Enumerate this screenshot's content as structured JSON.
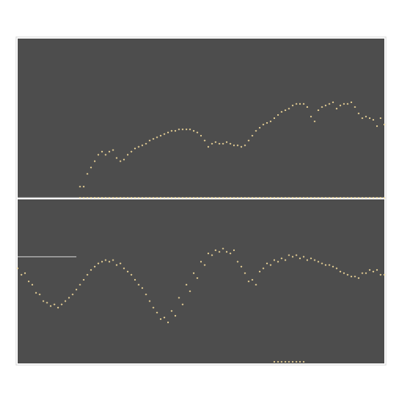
{
  "chart_data": [
    {
      "type": "scatter",
      "panel": "top",
      "background_color": "#4d4d4d",
      "point_color": "#f5dc9c",
      "grid": false,
      "axes_visible": false,
      "reference_line": {
        "y": 0,
        "color": "#cfcfcf"
      },
      "xlim": [
        0,
        100
      ],
      "ylim": [
        0,
        100
      ],
      "series": [
        {
          "x": [
            17,
            18,
            19,
            20,
            21,
            22,
            23,
            24,
            25,
            26,
            27,
            28,
            29,
            30,
            31,
            32,
            33,
            34,
            35,
            36,
            37,
            38,
            39,
            40,
            41,
            42,
            43,
            44,
            45,
            46,
            47,
            48,
            49,
            50,
            51,
            52,
            53,
            54,
            55,
            56,
            57,
            58,
            59,
            60,
            61,
            62,
            63,
            64,
            65,
            66,
            67,
            68,
            69,
            70,
            71,
            72,
            73,
            74,
            75,
            76,
            77,
            78,
            79,
            80,
            81,
            82,
            83,
            84,
            85,
            86,
            87,
            88,
            89,
            90,
            91,
            92,
            93,
            94,
            95,
            96,
            97,
            98,
            99,
            100
          ],
          "y": [
            7,
            7,
            15,
            19,
            23,
            27,
            29,
            27,
            29,
            30,
            25,
            23,
            24,
            27,
            29,
            31,
            32,
            33,
            34,
            36,
            37,
            38,
            39,
            40,
            41,
            42,
            42,
            43,
            43,
            43,
            43,
            42,
            41,
            39,
            36,
            32,
            34,
            35,
            34,
            34,
            35,
            34,
            33,
            33,
            32,
            33,
            36,
            39,
            42,
            44,
            46,
            47,
            48,
            50,
            52,
            54,
            55,
            56,
            58,
            59,
            59,
            59,
            57,
            51,
            48,
            55,
            57,
            58,
            59,
            60,
            56,
            58,
            59,
            59,
            60,
            57,
            53,
            50,
            51,
            50,
            49,
            45,
            50,
            46
          ]
        },
        {
          "x": [
            17,
            18,
            19,
            20,
            21,
            22,
            23,
            24,
            25,
            26,
            27,
            28,
            29,
            30,
            31,
            32,
            33,
            34,
            35,
            36,
            37,
            38,
            39,
            40,
            41,
            42,
            43,
            44,
            45,
            46,
            47,
            48,
            49,
            50,
            51,
            52,
            53,
            54,
            55,
            56,
            57,
            58,
            59,
            60,
            61,
            62,
            63,
            64,
            65,
            66,
            67,
            68,
            69,
            70,
            71,
            72,
            73,
            74,
            75,
            76,
            77,
            78,
            79,
            80,
            81,
            82,
            83,
            84,
            85,
            86,
            87,
            88,
            89,
            90,
            91,
            92,
            93,
            94,
            95,
            96,
            97,
            98,
            99,
            100
          ],
          "y": [
            0,
            0,
            0,
            0,
            0,
            0,
            0,
            0,
            0,
            0,
            0,
            0,
            0,
            0,
            0,
            0,
            0,
            0,
            0,
            0,
            0,
            0,
            0,
            0,
            0,
            0,
            0,
            0,
            0,
            0,
            0,
            0,
            0,
            0,
            0,
            0,
            0,
            0,
            0,
            0,
            0,
            0,
            0,
            0,
            0,
            0,
            0,
            0,
            0,
            0,
            0,
            0,
            0,
            0,
            0,
            0,
            0,
            0,
            0,
            0,
            0,
            0,
            0,
            0,
            0,
            0,
            0,
            0,
            0,
            0,
            0,
            0,
            0,
            0,
            0,
            0,
            0,
            0,
            0,
            0,
            0,
            0,
            0,
            0
          ]
        }
      ]
    },
    {
      "type": "scatter",
      "panel": "bottom",
      "background_color": "#4d4d4d",
      "point_color": "#f5dc9c",
      "grid": false,
      "axes_visible": false,
      "reference_line": {
        "y": 65,
        "x_range": [
          0,
          16
        ],
        "color": "#cfcfcf"
      },
      "xlim": [
        0,
        100
      ],
      "ylim": [
        0,
        100
      ],
      "series": [
        {
          "x": [
            0,
            2,
            4,
            6,
            8,
            10,
            12,
            14,
            16,
            18,
            20,
            22,
            24,
            26,
            28,
            30,
            32,
            34,
            36,
            38,
            40,
            42,
            44,
            46,
            48,
            50,
            52,
            54,
            56,
            58,
            60,
            62,
            64,
            66,
            68,
            70,
            72,
            74,
            76,
            78,
            80,
            82,
            84,
            86,
            88,
            90,
            92,
            94,
            96,
            98,
            100
          ],
          "y": [
            58,
            55,
            48,
            42,
            37,
            36,
            36,
            40,
            45,
            51,
            57,
            61,
            63,
            63,
            61,
            56,
            51,
            46,
            38,
            31,
            28,
            32,
            40,
            48,
            55,
            62,
            67,
            69,
            70,
            67,
            62,
            55,
            51,
            56,
            61,
            63,
            64,
            66,
            66,
            65,
            64,
            62,
            60,
            59,
            56,
            54,
            53,
            55,
            57,
            57,
            54
          ]
        },
        {
          "x": [
            1,
            3,
            5,
            7,
            9,
            11,
            13,
            15,
            17,
            19,
            21,
            23,
            25,
            27,
            29,
            31,
            33,
            35,
            37,
            39,
            41,
            43,
            45,
            47,
            49,
            51,
            53,
            55,
            57,
            59,
            61,
            63,
            65,
            67,
            69,
            71,
            73,
            75,
            77,
            79,
            81,
            83,
            85,
            87,
            89,
            91,
            93,
            95,
            97,
            99
          ],
          "y": [
            54,
            50,
            43,
            38,
            35,
            34,
            38,
            42,
            48,
            54,
            59,
            62,
            62,
            60,
            58,
            54,
            48,
            42,
            34,
            27,
            25,
            29,
            36,
            44,
            52,
            60,
            66,
            68,
            68,
            69,
            59,
            50,
            48,
            58,
            60,
            62,
            63,
            65,
            64,
            63,
            63,
            61,
            60,
            58,
            55,
            53,
            52,
            55,
            56,
            54
          ]
        },
        {
          "x": [
            70,
            71,
            72,
            73,
            74,
            75,
            76,
            77,
            78
          ],
          "y": [
            1,
            1,
            1,
            1,
            1,
            1,
            1,
            1,
            1
          ]
        }
      ]
    }
  ]
}
